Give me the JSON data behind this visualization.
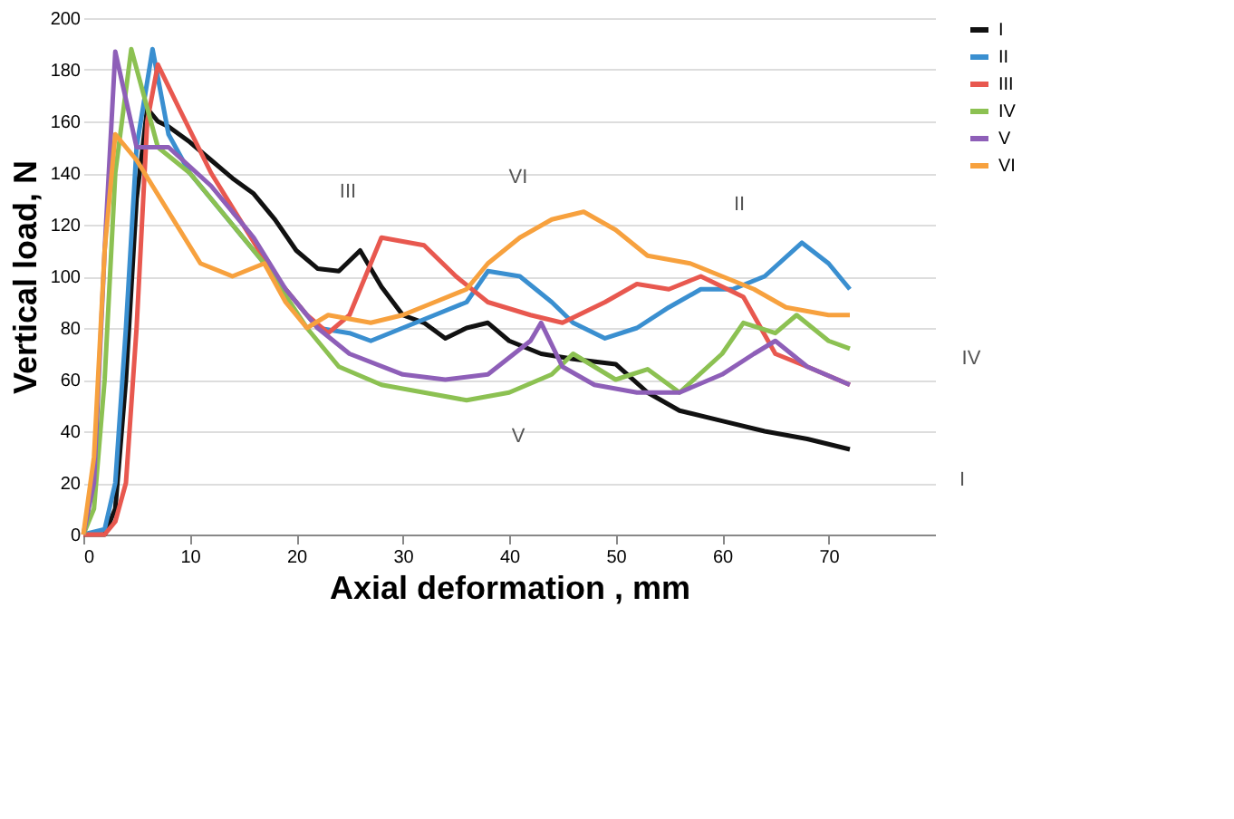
{
  "chart_data": {
    "type": "line",
    "xlabel": "Axial deformation , mm",
    "ylabel": "Vertical load, N",
    "xlim": [
      0,
      80
    ],
    "xticks": [
      0,
      10,
      20,
      30,
      40,
      50,
      60,
      70
    ],
    "ylim": [
      0,
      200
    ],
    "yticks": [
      0,
      20,
      40,
      60,
      80,
      100,
      120,
      140,
      160,
      180,
      200
    ],
    "grid": "y",
    "legend": "right",
    "marker": "none",
    "line_style": "solid",
    "series": [
      {
        "name": "I",
        "color": "#111111",
        "x": [
          0,
          2,
          3,
          4,
          5,
          6,
          7,
          8,
          10,
          12,
          14,
          16,
          18,
          20,
          22,
          24,
          26,
          28,
          30,
          32,
          34,
          36,
          38,
          40,
          43,
          46,
          50,
          53,
          56,
          60,
          64,
          68,
          72
        ],
        "values": [
          0,
          0,
          10,
          60,
          130,
          165,
          160,
          158,
          152,
          145,
          138,
          132,
          122,
          110,
          103,
          102,
          110,
          96,
          85,
          82,
          76,
          80,
          82,
          75,
          70,
          68,
          66,
          55,
          48,
          44,
          40,
          37,
          33
        ]
      },
      {
        "name": "II",
        "color": "#3a8fd0",
        "x": [
          0,
          2,
          3,
          4,
          5,
          6.5,
          8,
          10,
          12,
          14,
          16,
          18,
          20,
          22,
          25,
          27,
          30,
          33,
          36,
          38,
          41,
          44,
          46,
          49,
          52,
          55,
          58,
          61,
          64,
          67.5,
          70,
          72
        ],
        "values": [
          0,
          2,
          20,
          80,
          150,
          188,
          155,
          140,
          130,
          120,
          110,
          100,
          90,
          80,
          78,
          75,
          80,
          85,
          90,
          102,
          100,
          90,
          82,
          76,
          80,
          88,
          95,
          95,
          100,
          113,
          105,
          95
        ]
      },
      {
        "name": "III",
        "color": "#e8584f",
        "x": [
          0,
          2,
          3,
          4,
          5,
          6,
          7,
          9,
          12,
          15,
          18,
          21,
          23,
          25,
          26.5,
          28,
          32,
          35,
          38,
          42,
          45,
          49,
          52,
          55,
          58,
          62,
          65,
          68,
          72
        ],
        "values": [
          0,
          0,
          5,
          20,
          80,
          160,
          182,
          165,
          140,
          120,
          100,
          85,
          78,
          85,
          100,
          115,
          112,
          100,
          90,
          85,
          82,
          90,
          97,
          95,
          100,
          92,
          70,
          65,
          58
        ]
      },
      {
        "name": "IV",
        "color": "#8cc152",
        "x": [
          0,
          1,
          2,
          3,
          4.5,
          7,
          10,
          14,
          17,
          21,
          24,
          28,
          32,
          36,
          40,
          44,
          46,
          50,
          53,
          56,
          60,
          62,
          65,
          67,
          70,
          72
        ],
        "values": [
          0,
          10,
          60,
          140,
          188,
          150,
          140,
          120,
          105,
          80,
          65,
          58,
          55,
          52,
          55,
          62,
          70,
          60,
          64,
          55,
          70,
          82,
          78,
          85,
          75,
          72
        ]
      },
      {
        "name": "V",
        "color": "#8e5fb8",
        "x": [
          0,
          1,
          2,
          3,
          5,
          8,
          12,
          16,
          19,
          22,
          25,
          30,
          34,
          38,
          42,
          43,
          45,
          48,
          52,
          56,
          60,
          63,
          65,
          68,
          72
        ],
        "values": [
          0,
          20,
          110,
          187,
          150,
          150,
          135,
          115,
          95,
          80,
          70,
          62,
          60,
          62,
          75,
          82,
          65,
          58,
          55,
          55,
          62,
          70,
          75,
          65,
          58
        ]
      },
      {
        "name": "VI",
        "color": "#f7a13e",
        "x": [
          0,
          1,
          2,
          3,
          5,
          8,
          11,
          14,
          17,
          19,
          21,
          23,
          27,
          30,
          33,
          36,
          38,
          41,
          44,
          47,
          50,
          53,
          57,
          60,
          63,
          66,
          70,
          72
        ],
        "values": [
          0,
          30,
          110,
          155,
          145,
          125,
          105,
          100,
          105,
          90,
          80,
          85,
          82,
          85,
          90,
          95,
          105,
          115,
          122,
          125,
          118,
          108,
          105,
          100,
          95,
          88,
          85,
          85
        ]
      }
    ],
    "annotations": [
      "III",
      "VI",
      "II",
      "IV",
      "V",
      "I"
    ]
  }
}
